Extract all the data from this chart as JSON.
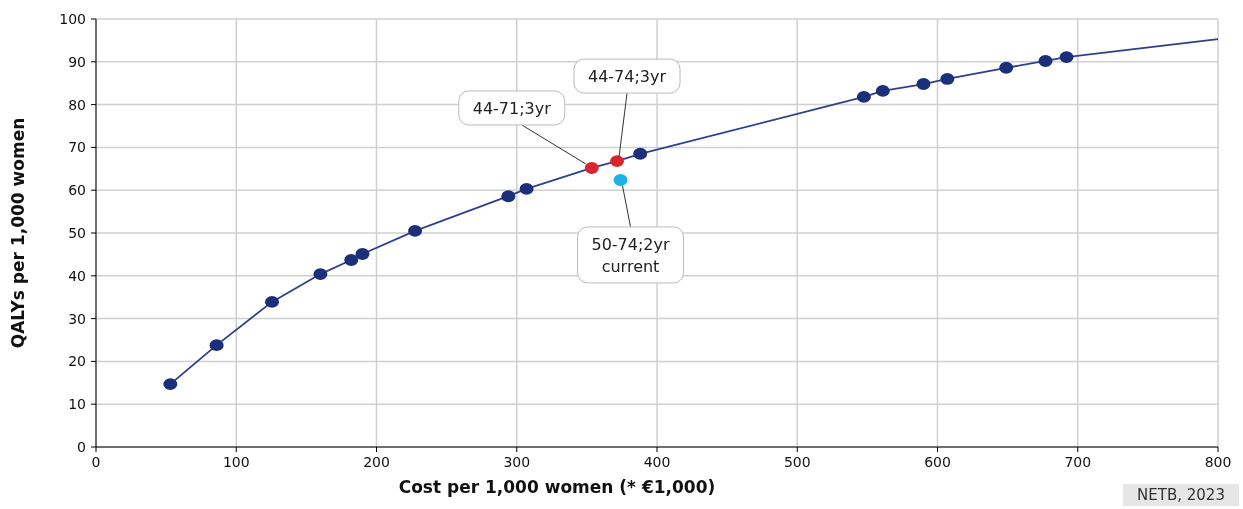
{
  "chart_data": {
    "type": "scatter",
    "xlabel": "Cost per 1,000 women (* €1,000)",
    "ylabel": "QALYs per 1,000 women",
    "xlim": [
      0,
      800
    ],
    "xticks": [
      0,
      100,
      200,
      300,
      400,
      500,
      600,
      700,
      800
    ],
    "ylim": [
      0,
      100
    ],
    "yticks": [
      0,
      10,
      20,
      30,
      40,
      50,
      60,
      70,
      80,
      90,
      100
    ],
    "grid": true,
    "marker": "circle",
    "series": [
      {
        "type": "line",
        "color": "#2e3f8f",
        "marker": "none",
        "x": [
          53,
          86,
          125.5,
          160,
          182,
          190,
          227.5,
          294,
          307,
          353.5,
          371.5,
          388,
          547.5,
          561,
          590,
          607,
          649,
          677,
          692,
          800
        ],
        "values": [
          14.7,
          23.8,
          33.9,
          40.4,
          43.7,
          45.1,
          50.5,
          58.6,
          60.3,
          65.2,
          66.8,
          68.5,
          81.8,
          83.2,
          84.8,
          86.0,
          88.6,
          90.2,
          91.1,
          95.3
        ]
      },
      {
        "color": "#1c2f7a",
        "x": [
          53,
          86,
          125.5,
          160,
          182,
          190,
          227.5,
          294,
          307,
          388,
          547.5,
          561,
          590,
          607,
          649,
          677,
          692
        ],
        "values": [
          14.7,
          23.8,
          33.9,
          40.4,
          43.7,
          45.1,
          50.5,
          58.6,
          60.3,
          68.5,
          81.8,
          83.2,
          84.8,
          86.0,
          88.6,
          90.2,
          91.1
        ]
      },
      {
        "color": "#d9262c",
        "x": [
          353.5,
          371.5
        ],
        "values": [
          65.2,
          66.8
        ]
      },
      {
        "color": "#19b3ea",
        "x": [
          374
        ],
        "values": [
          62.4
        ]
      }
    ],
    "annotations": [
      {
        "text": "44-71;3yr",
        "x": 353.5,
        "y": 65.2
      },
      {
        "text": "44-74;3yr",
        "x": 371.5,
        "y": 66.8
      },
      {
        "text": "50-74;2yr\ncurrent",
        "x": 374,
        "y": 62.4
      },
      "NETB, 2023"
    ]
  }
}
